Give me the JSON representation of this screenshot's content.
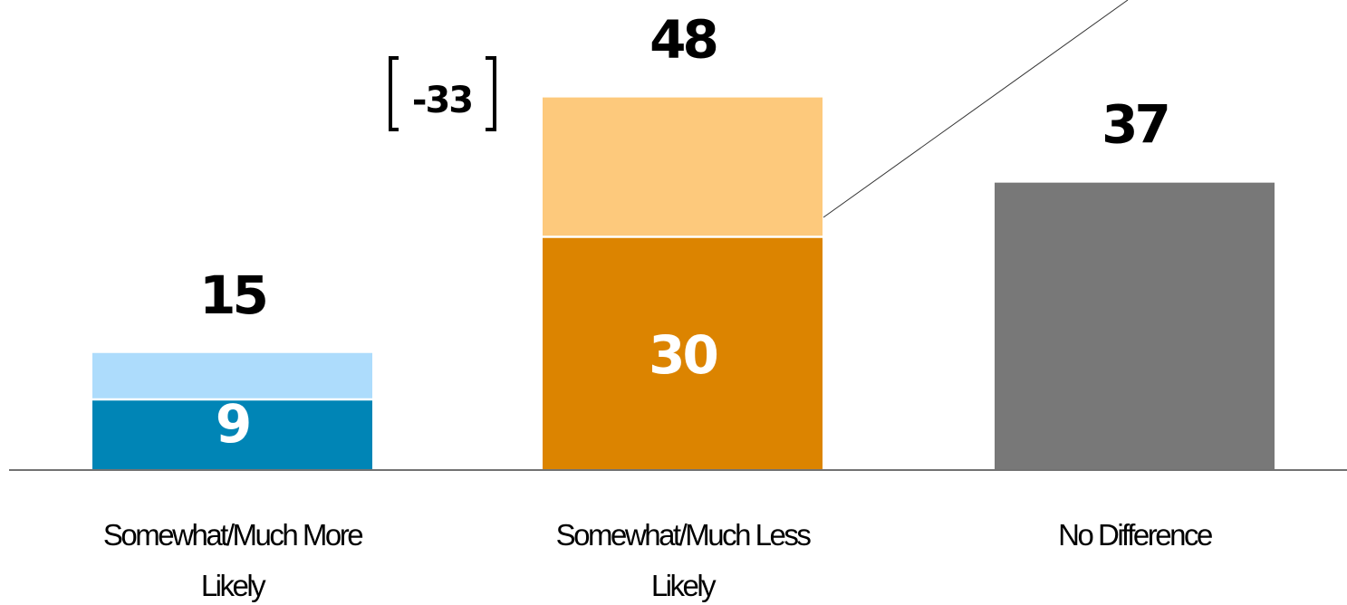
{
  "chart_data": {
    "type": "bar",
    "stacked": true,
    "categories": [
      [
        "Somewhat/Much More",
        "Likely"
      ],
      [
        "Somewhat/Much Less",
        "Likely"
      ],
      [
        "No Difference"
      ]
    ],
    "totals": [
      15,
      48,
      37
    ],
    "inner_values": [
      9,
      30,
      null
    ],
    "show_inner_labels": [
      true,
      true,
      false
    ],
    "difference_annotation": "-33",
    "ylim": [
      0,
      50
    ],
    "grid": false,
    "legend": "none",
    "colors": {
      "more_strong": "#0085B6",
      "more_light": "#ADDCFC",
      "less_strong": "#DC8400",
      "less_light": "#FDC97C",
      "no_difference": "#787878",
      "baseline": "#444444"
    }
  }
}
